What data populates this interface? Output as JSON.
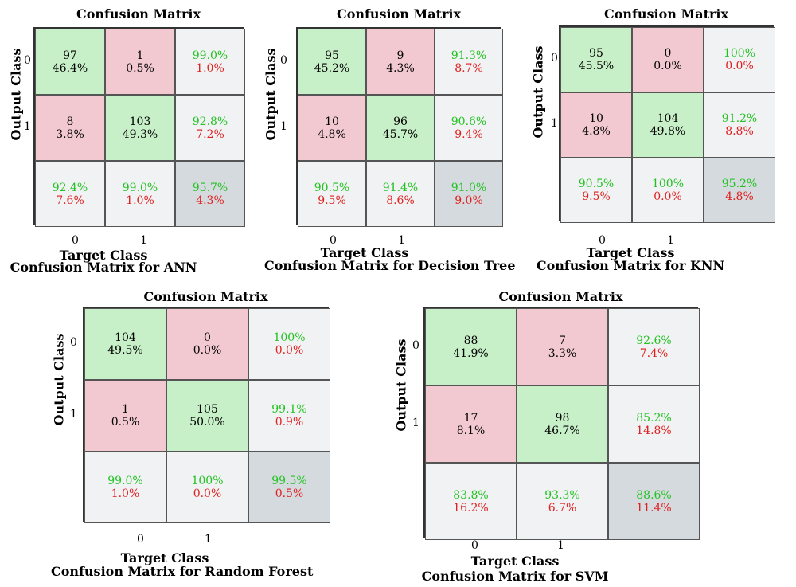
{
  "chart_data": [
    {
      "type": "table",
      "title": "Confusion Matrix",
      "ylabel": "Output Class",
      "xlabel": "Target Class",
      "caption": "Confusion Matrix for ANN",
      "row_ticks": [
        "0",
        "1"
      ],
      "col_ticks": [
        "0",
        "1"
      ],
      "cells": [
        [
          {
            "count": "97",
            "pct": "46.4%"
          },
          {
            "count": "1",
            "pct": "0.5%"
          },
          {
            "good": "99.0%",
            "bad": "1.0%"
          }
        ],
        [
          {
            "count": "8",
            "pct": "3.8%"
          },
          {
            "count": "103",
            "pct": "49.3%"
          },
          {
            "good": "92.8%",
            "bad": "7.2%"
          }
        ],
        [
          {
            "good": "92.4%",
            "bad": "7.6%"
          },
          {
            "good": "99.0%",
            "bad": "1.0%"
          },
          {
            "good": "95.7%",
            "bad": "4.3%"
          }
        ]
      ]
    },
    {
      "type": "table",
      "title": "Confusion Matrix",
      "ylabel": "Output Class",
      "xlabel": "Target Class",
      "caption": "Confusion Matrix for Decision Tree",
      "row_ticks": [
        "0",
        "1"
      ],
      "col_ticks": [
        "0",
        "1"
      ],
      "cells": [
        [
          {
            "count": "95",
            "pct": "45.2%"
          },
          {
            "count": "9",
            "pct": "4.3%"
          },
          {
            "good": "91.3%",
            "bad": "8.7%"
          }
        ],
        [
          {
            "count": "10",
            "pct": "4.8%"
          },
          {
            "count": "96",
            "pct": "45.7%"
          },
          {
            "good": "90.6%",
            "bad": "9.4%"
          }
        ],
        [
          {
            "good": "90.5%",
            "bad": "9.5%"
          },
          {
            "good": "91.4%",
            "bad": "8.6%"
          },
          {
            "good": "91.0%",
            "bad": "9.0%"
          }
        ]
      ]
    },
    {
      "type": "table",
      "title": "Confusion Matrix",
      "ylabel": "Output Class",
      "xlabel": "Target Class",
      "caption": "Confusion Matrix for KNN",
      "row_ticks": [
        "0",
        "1"
      ],
      "col_ticks": [
        "0",
        "1"
      ],
      "cells": [
        [
          {
            "count": "95",
            "pct": "45.5%"
          },
          {
            "count": "0",
            "pct": "0.0%"
          },
          {
            "good": "100%",
            "bad": "0.0%"
          }
        ],
        [
          {
            "count": "10",
            "pct": "4.8%"
          },
          {
            "count": "104",
            "pct": "49.8%"
          },
          {
            "good": "91.2%",
            "bad": "8.8%"
          }
        ],
        [
          {
            "good": "90.5%",
            "bad": "9.5%"
          },
          {
            "good": "100%",
            "bad": "0.0%"
          },
          {
            "good": "95.2%",
            "bad": "4.8%"
          }
        ]
      ]
    },
    {
      "type": "table",
      "title": "Confusion Matrix",
      "ylabel": "Output Class",
      "xlabel": "Target Class",
      "caption": "Confusion Matrix for Random Forest",
      "row_ticks": [
        "0",
        "1"
      ],
      "col_ticks": [
        "0",
        "1"
      ],
      "cells": [
        [
          {
            "count": "104",
            "pct": "49.5%"
          },
          {
            "count": "0",
            "pct": "0.0%"
          },
          {
            "good": "100%",
            "bad": "0.0%"
          }
        ],
        [
          {
            "count": "1",
            "pct": "0.5%"
          },
          {
            "count": "105",
            "pct": "50.0%"
          },
          {
            "good": "99.1%",
            "bad": "0.9%"
          }
        ],
        [
          {
            "good": "99.0%",
            "bad": "1.0%"
          },
          {
            "good": "100%",
            "bad": "0.0%"
          },
          {
            "good": "99.5%",
            "bad": "0.5%"
          }
        ]
      ]
    },
    {
      "type": "table",
      "title": "Confusion Matrix",
      "ylabel": "Output Class",
      "xlabel": "Target Class",
      "caption": "Confusion Matrix for SVM",
      "row_ticks": [
        "0",
        "1"
      ],
      "col_ticks": [
        "0",
        "1"
      ],
      "cells": [
        [
          {
            "count": "88",
            "pct": "41.9%"
          },
          {
            "count": "7",
            "pct": "3.3%"
          },
          {
            "good": "92.6%",
            "bad": "7.4%"
          }
        ],
        [
          {
            "count": "17",
            "pct": "8.1%"
          },
          {
            "count": "98",
            "pct": "46.7%"
          },
          {
            "good": "85.2%",
            "bad": "14.8%"
          }
        ],
        [
          {
            "good": "83.8%",
            "bad": "16.2%"
          },
          {
            "good": "93.3%",
            "bad": "6.7%"
          },
          {
            "good": "88.6%",
            "bad": "11.4%"
          }
        ]
      ]
    }
  ],
  "colors": {
    "correct_cell": "#c8f0c8",
    "error_cell": "#f2c9d1",
    "summary_cell": "#f1f2f3",
    "overall_cell": "#d5dade",
    "good_text": "#22c222",
    "bad_text": "#e02020"
  }
}
